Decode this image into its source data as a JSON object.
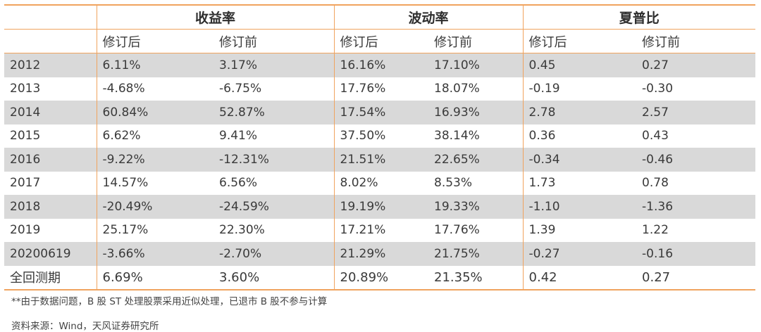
{
  "groups": [
    "收益率",
    "波动率",
    "夏普比"
  ],
  "sub_headers": [
    "修订后",
    "修订前",
    "修订后",
    "修订前",
    "修订后",
    "修订前"
  ],
  "rows": [
    {
      "year": "2012",
      "values": [
        "6.11%",
        "3.17%",
        "16.16%",
        "17.10%",
        "0.45",
        "0.27"
      ]
    },
    {
      "year": "2013",
      "values": [
        "-4.68%",
        "-6.75%",
        "17.76%",
        "18.07%",
        "-0.19",
        "-0.30"
      ]
    },
    {
      "year": "2014",
      "values": [
        "60.84%",
        "52.87%",
        "17.54%",
        "16.93%",
        "2.78",
        "2.57"
      ]
    },
    {
      "year": "2015",
      "values": [
        "6.62%",
        "9.41%",
        "37.50%",
        "38.14%",
        "0.36",
        "0.43"
      ]
    },
    {
      "year": "2016",
      "values": [
        "-9.22%",
        "-12.31%",
        "21.51%",
        "22.65%",
        "-0.34",
        "-0.46"
      ]
    },
    {
      "year": "2017",
      "values": [
        "14.57%",
        "6.56%",
        "8.02%",
        "8.53%",
        "1.73",
        "0.78"
      ]
    },
    {
      "year": "2018",
      "values": [
        "-20.49%",
        "-24.59%",
        "19.19%",
        "19.33%",
        "-1.10",
        "-1.36"
      ]
    },
    {
      "year": "2019",
      "values": [
        "25.17%",
        "22.30%",
        "17.21%",
        "17.76%",
        "1.39",
        "1.22"
      ]
    },
    {
      "year": "20200619",
      "values": [
        "-3.66%",
        "-2.70%",
        "21.29%",
        "21.75%",
        "-0.27",
        "-0.16"
      ]
    },
    {
      "year": "全回测期",
      "values": [
        "6.69%",
        "3.60%",
        "20.89%",
        "21.35%",
        "0.42",
        "0.27"
      ]
    }
  ],
  "notes": {
    "footnote": "**由于数据问题，B 股 ST 处理股票采用近似处理，已退市 B 股不参与计算",
    "source": "资料来源：Wind，天风证券研究所"
  },
  "colors": {
    "accent_line": "#f0a35e",
    "shaded_row": "#d9d9d9"
  }
}
